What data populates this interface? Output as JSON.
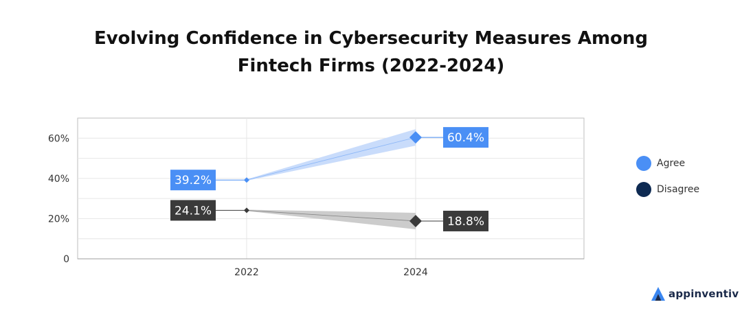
{
  "title_line1": "Evolving Confidence in Cybersecurity Measures Among",
  "title_line2": "Fintech Firms (2022-2024)",
  "chart_data": {
    "type": "line",
    "title": "Evolving Confidence in Cybersecurity Measures Among Fintech Firms (2022-2024)",
    "xlabel": "",
    "ylabel": "",
    "categories": [
      "2022",
      "2024"
    ],
    "ylim": [
      0,
      70
    ],
    "yticks": [
      0,
      20,
      40,
      60
    ],
    "ytick_labels": [
      "0",
      "20%",
      "40%",
      "60%"
    ],
    "grid": true,
    "legend_position": "right",
    "series": [
      {
        "name": "Agree",
        "values": [
          39.2,
          60.4
        ],
        "labels": [
          "39.2%",
          "60.4%"
        ],
        "color": "#4a8ff5",
        "band_color": "#c9dcfb"
      },
      {
        "name": "Disagree",
        "values": [
          24.1,
          18.8
        ],
        "labels": [
          "24.1%",
          "18.8%"
        ],
        "color": "#3a3a3a",
        "band_color": "#cccccc",
        "legend_color": "#0e2a52"
      }
    ]
  },
  "legend": {
    "items": [
      {
        "label": "Agree",
        "color": "#4a8ff5"
      },
      {
        "label": "Disagree",
        "color": "#0e2a52"
      }
    ]
  },
  "brand": {
    "name": "appinventiv",
    "color": "#1b2a4a",
    "accent": "#3a86f0",
    "icon": "appinventiv-logo-icon"
  }
}
